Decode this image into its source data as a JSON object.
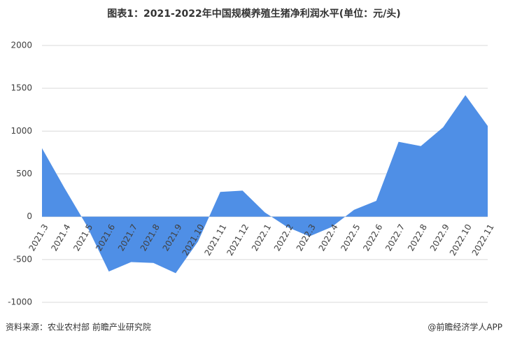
{
  "chart_data": {
    "type": "area",
    "title": "图表1：2021-2022年中国规模养殖生猪净利润水平(单位：元/头)",
    "categories": [
      "2021.3",
      "2021.4",
      "2021.5",
      "2021.6",
      "2021.7",
      "2021.8",
      "2021.9",
      "2021.10",
      "2021.11",
      "2021.12",
      "2022.1",
      "2022.2",
      "2022.3",
      "2022.4",
      "2022.5",
      "2022.6",
      "2022.7",
      "2022.8",
      "2022.9",
      "2022.10",
      "2022.11"
    ],
    "values": [
      800,
      340,
      -100,
      -640,
      -530,
      -540,
      -660,
      -290,
      290,
      305,
      50,
      -120,
      -230,
      -120,
      80,
      185,
      875,
      825,
      1045,
      1420,
      1060
    ],
    "color": "#4f8fe6",
    "ylim": [
      -1000,
      2000
    ],
    "yticks": [
      -1000,
      -500,
      0,
      500,
      1000,
      1500,
      2000
    ],
    "grid": true,
    "source": "资料来源：农业农村部 前瞻产业研究院",
    "brand": "@前瞻经济学人APP"
  }
}
